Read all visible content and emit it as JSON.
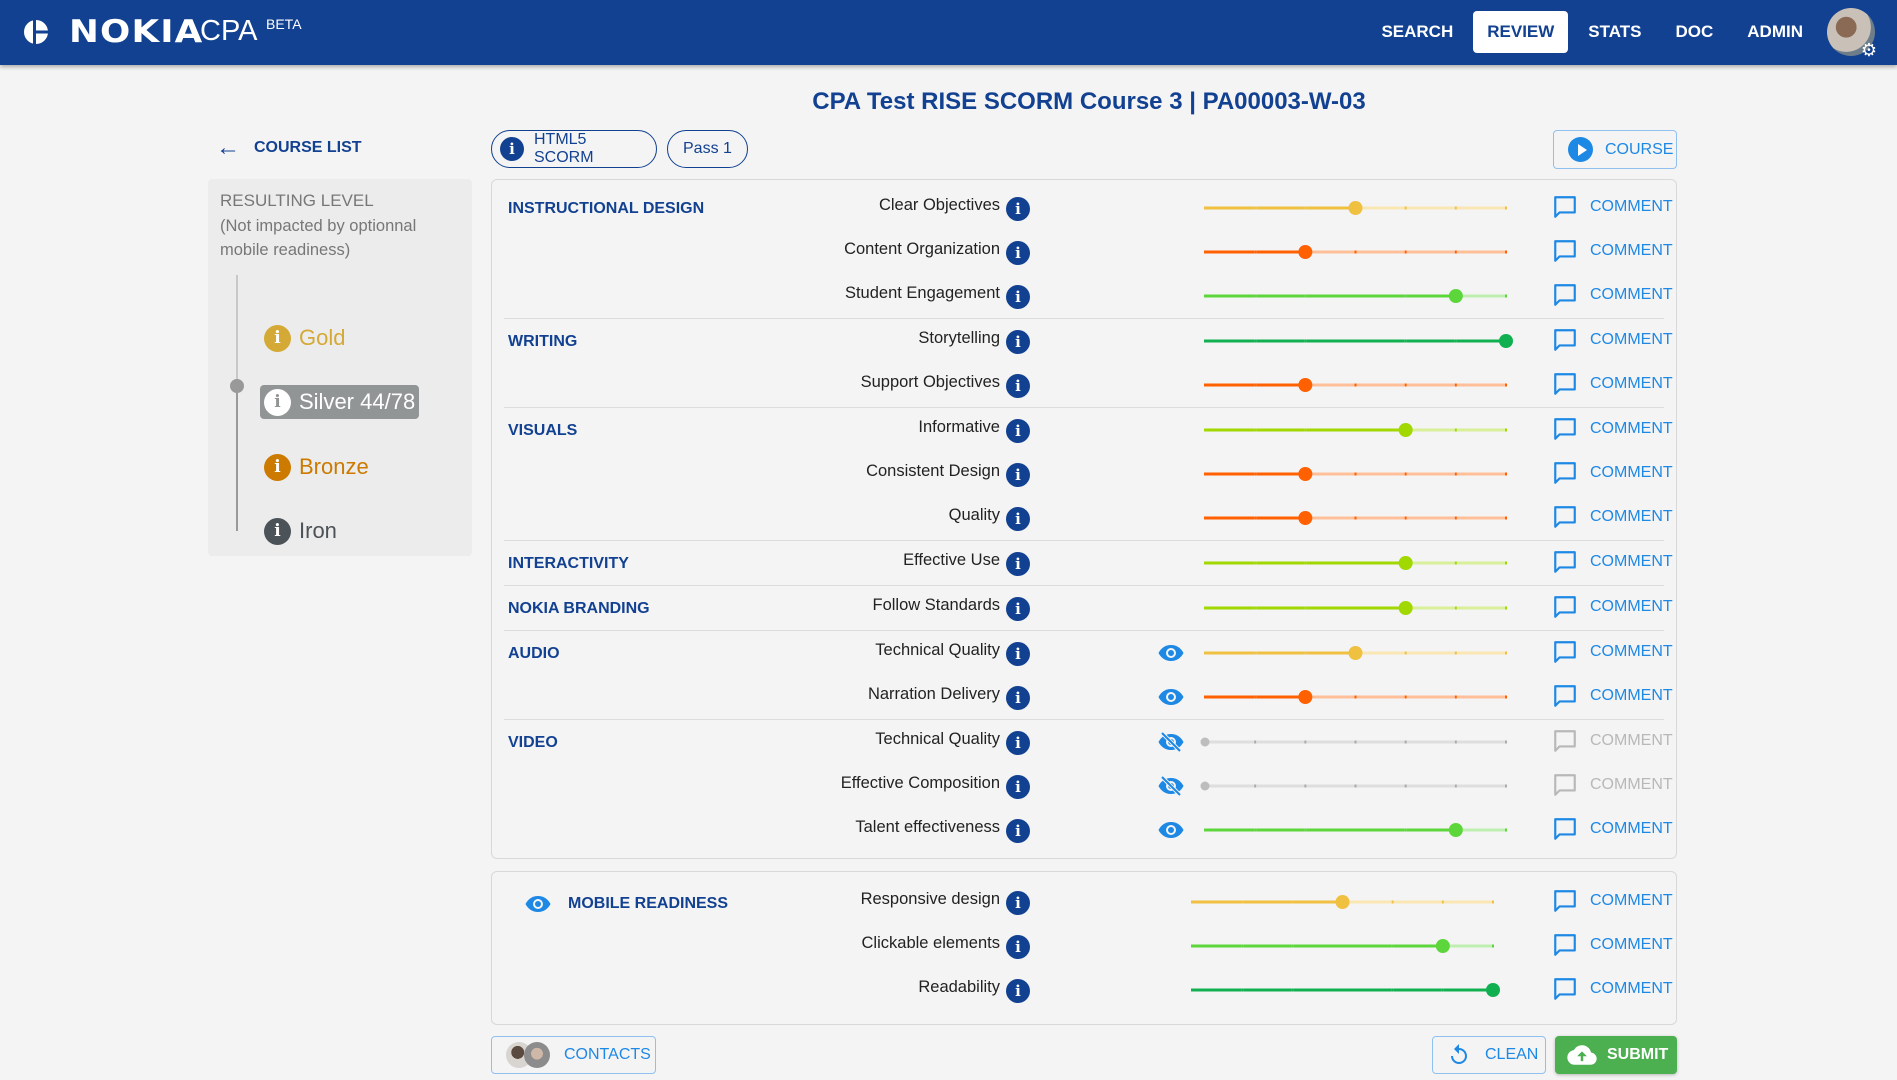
{
  "header": {
    "brand": "NOKIA",
    "app": "CPA",
    "badge": "BETA",
    "nav": [
      {
        "label": "SEARCH",
        "active": false
      },
      {
        "label": "REVIEW",
        "active": true
      },
      {
        "label": "STATS",
        "active": false
      },
      {
        "label": "DOC",
        "active": false
      },
      {
        "label": "ADMIN",
        "active": false
      }
    ]
  },
  "page_title": "CPA Test RISE SCORM Course 3 | PA00003-W-03",
  "sidebar": {
    "back_label": "COURSE LIST",
    "level_title": "RESULTING LEVEL",
    "level_subtitle": "(Not impacted by optionnal mobile readiness)",
    "levels": [
      {
        "label": "Gold",
        "current": false
      },
      {
        "label": "Silver 44/78",
        "current": true
      },
      {
        "label": "Bronze",
        "current": false
      },
      {
        "label": "Iron",
        "current": false
      }
    ]
  },
  "chips": {
    "format": "HTML5 SCORM",
    "pass": "Pass 1"
  },
  "course_button": "COURSE",
  "comment_label": "COMMENT",
  "slider_max": 6,
  "colors": {
    "primary": "#124191",
    "accent": "#1e88e5",
    "score_low": "#ff6000",
    "score_mid": "#f0c040",
    "score_good": "#a0d800",
    "score_high": "#5cd63a",
    "score_max": "#10b050",
    "disabled": "#c0c0c0",
    "submit": "#4caf50"
  },
  "sections": [
    {
      "label": "INSTRUCTIONAL DESIGN",
      "criteria": [
        {
          "name": "Clear Objectives",
          "score": 3,
          "eye": null,
          "enabled": true
        },
        {
          "name": "Content Organization",
          "score": 2,
          "eye": null,
          "enabled": true
        },
        {
          "name": "Student Engagement",
          "score": 5,
          "eye": null,
          "enabled": true
        }
      ]
    },
    {
      "label": "WRITING",
      "criteria": [
        {
          "name": "Storytelling",
          "score": 6,
          "eye": null,
          "enabled": true
        },
        {
          "name": "Support Objectives",
          "score": 2,
          "eye": null,
          "enabled": true
        }
      ]
    },
    {
      "label": "VISUALS",
      "criteria": [
        {
          "name": "Informative",
          "score": 4,
          "eye": null,
          "enabled": true
        },
        {
          "name": "Consistent Design",
          "score": 2,
          "eye": null,
          "enabled": true
        },
        {
          "name": "Quality",
          "score": 2,
          "eye": null,
          "enabled": true
        }
      ]
    },
    {
      "label": "INTERACTIVITY",
      "criteria": [
        {
          "name": "Effective Use",
          "score": 4,
          "eye": null,
          "enabled": true
        }
      ]
    },
    {
      "label": "NOKIA BRANDING",
      "criteria": [
        {
          "name": "Follow Standards",
          "score": 4,
          "eye": null,
          "enabled": true
        }
      ]
    },
    {
      "label": "AUDIO",
      "criteria": [
        {
          "name": "Technical Quality",
          "score": 3,
          "eye": "visible",
          "enabled": true
        },
        {
          "name": "Narration Delivery",
          "score": 2,
          "eye": "visible",
          "enabled": true
        }
      ]
    },
    {
      "label": "VIDEO",
      "criteria": [
        {
          "name": "Technical Quality",
          "score": 0,
          "eye": "hidden",
          "enabled": false
        },
        {
          "name": "Effective Composition",
          "score": 0,
          "eye": "hidden",
          "enabled": false
        },
        {
          "name": "Talent effectiveness",
          "score": 5,
          "eye": "visible",
          "enabled": true
        }
      ]
    }
  ],
  "mobile": {
    "label": "MOBILE READINESS",
    "eye": "visible",
    "criteria": [
      {
        "name": "Responsive design",
        "score": 3,
        "enabled": true
      },
      {
        "name": "Clickable elements",
        "score": 5,
        "enabled": true
      },
      {
        "name": "Readability",
        "score": 6,
        "enabled": true
      }
    ]
  },
  "footer": {
    "contacts": "CONTACTS",
    "clean": "CLEAN",
    "submit": "SUBMIT"
  }
}
